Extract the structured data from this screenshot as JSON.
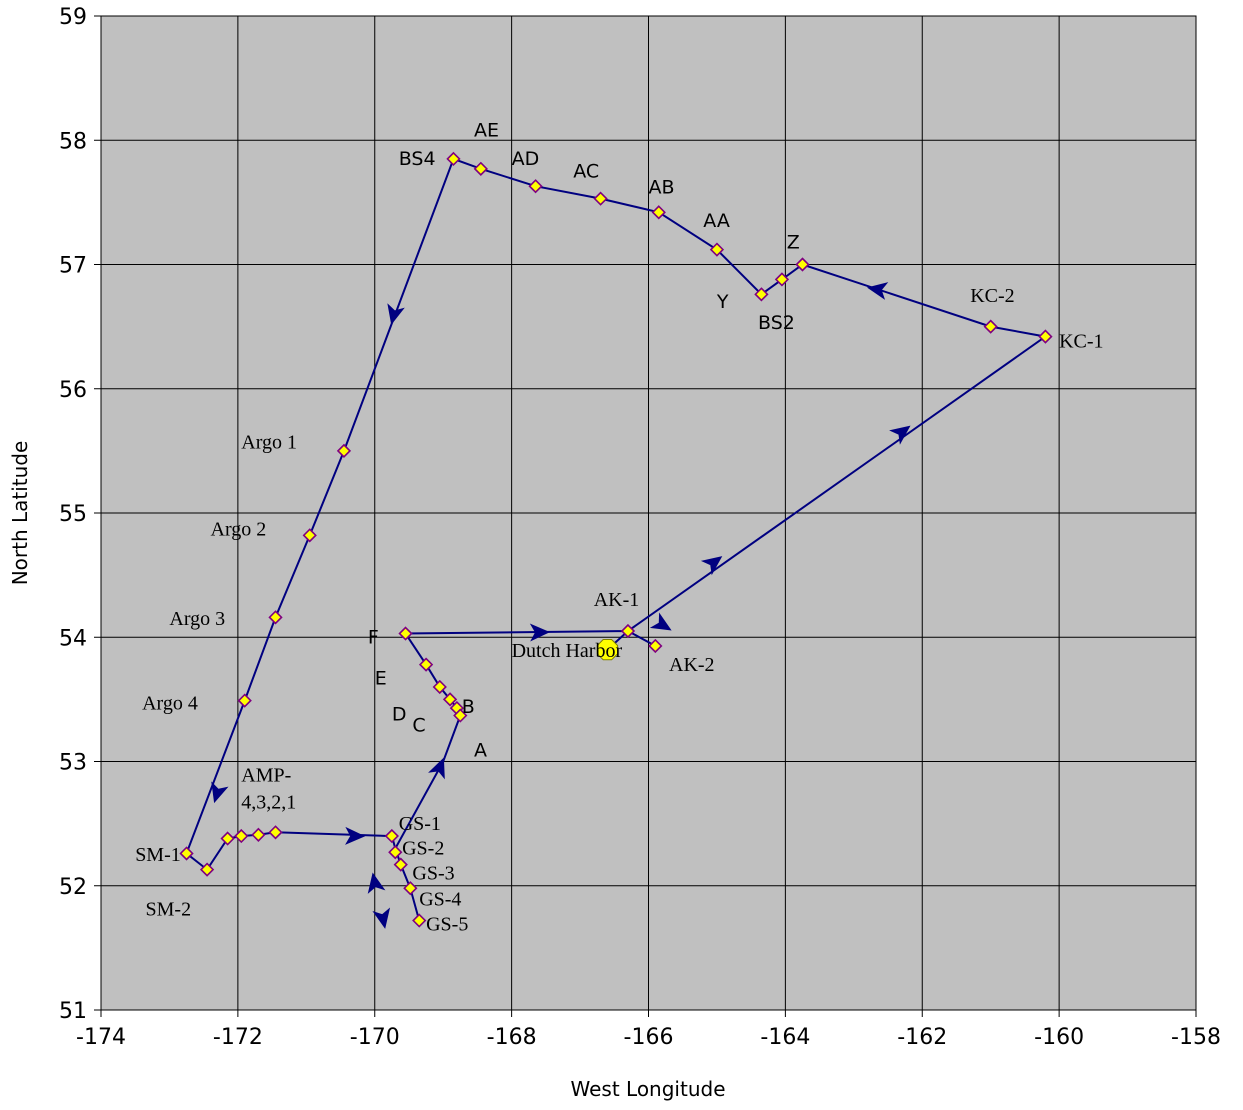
{
  "chart_data": {
    "type": "scatter",
    "xlabel": "West Longitude",
    "ylabel": "North Latitude",
    "xlim": [
      -174,
      -158
    ],
    "ylim": [
      51,
      59
    ],
    "xticks": [
      -174,
      -172,
      -170,
      -168,
      -166,
      -164,
      -162,
      -160,
      -158
    ],
    "yticks": [
      51,
      52,
      53,
      54,
      55,
      56,
      57,
      58,
      59
    ],
    "grid": true,
    "colors": {
      "plot_background": "#c0c0c0",
      "track_line": "#000080",
      "marker_fill": "#ffff00",
      "marker_edge": "#800080",
      "harbor_marker": "#ffff00"
    },
    "track": [
      [
        -166.6,
        53.9
      ],
      [
        -166.3,
        54.05
      ],
      [
        -165.9,
        53.93
      ],
      [
        -166.3,
        54.05
      ],
      [
        -169.55,
        54.03
      ],
      [
        -169.25,
        53.78
      ],
      [
        -169.05,
        53.6
      ],
      [
        -168.9,
        53.5
      ],
      [
        -168.8,
        53.43
      ],
      [
        -168.75,
        53.37
      ],
      [
        -169.0,
        53.0
      ],
      [
        -169.7,
        52.3
      ],
      [
        -169.75,
        52.4
      ],
      [
        -171.45,
        52.43
      ],
      [
        -171.7,
        52.41
      ],
      [
        -171.95,
        52.4
      ],
      [
        -172.15,
        52.38
      ],
      [
        -172.45,
        52.13
      ],
      [
        -172.75,
        52.26
      ],
      [
        -171.9,
        53.49
      ],
      [
        -171.45,
        54.16
      ],
      [
        -170.95,
        54.82
      ],
      [
        -170.45,
        55.5
      ],
      [
        -168.85,
        57.85
      ],
      [
        -168.45,
        57.77
      ],
      [
        -167.65,
        57.63
      ],
      [
        -166.7,
        57.53
      ],
      [
        -165.85,
        57.42
      ],
      [
        -165.0,
        57.12
      ],
      [
        -164.35,
        56.76
      ],
      [
        -164.05,
        56.88
      ],
      [
        -163.75,
        57.0
      ],
      [
        -161.0,
        56.5
      ],
      [
        -160.2,
        56.42
      ],
      [
        -166.3,
        54.05
      ]
    ],
    "gs_branch": [
      [
        -169.7,
        52.3
      ],
      [
        -169.62,
        52.17
      ],
      [
        -169.48,
        51.98
      ],
      [
        -169.35,
        51.72
      ]
    ],
    "stations": [
      [
        -166.3,
        54.05
      ],
      [
        -165.9,
        53.93
      ],
      [
        -169.55,
        54.03
      ],
      [
        -169.25,
        53.78
      ],
      [
        -169.05,
        53.6
      ],
      [
        -168.9,
        53.5
      ],
      [
        -168.8,
        53.43
      ],
      [
        -168.75,
        53.37
      ],
      [
        -169.75,
        52.4
      ],
      [
        -169.7,
        52.27
      ],
      [
        -169.62,
        52.17
      ],
      [
        -169.48,
        51.98
      ],
      [
        -169.35,
        51.72
      ],
      [
        -171.45,
        52.43
      ],
      [
        -171.7,
        52.41
      ],
      [
        -171.95,
        52.4
      ],
      [
        -172.15,
        52.38
      ],
      [
        -172.45,
        52.13
      ],
      [
        -172.75,
        52.26
      ],
      [
        -171.9,
        53.49
      ],
      [
        -171.45,
        54.16
      ],
      [
        -170.95,
        54.82
      ],
      [
        -170.45,
        55.5
      ],
      [
        -168.85,
        57.85
      ],
      [
        -168.45,
        57.77
      ],
      [
        -167.65,
        57.63
      ],
      [
        -166.7,
        57.53
      ],
      [
        -165.85,
        57.42
      ],
      [
        -165.0,
        57.12
      ],
      [
        -164.35,
        56.76
      ],
      [
        -164.05,
        56.88
      ],
      [
        -163.75,
        57.0
      ],
      [
        -161.0,
        56.5
      ],
      [
        -160.2,
        56.42
      ]
    ],
    "harbor": [
      -166.6,
      53.9
    ],
    "arrows": [
      {
        "at": [
          -167.6,
          54.04
        ],
        "dir": [
          1,
          0.02
        ]
      },
      {
        "at": [
          -165.8,
          54.1
        ],
        "dir": [
          1,
          -0.6
        ]
      },
      {
        "at": [
          -165.05,
          54.6
        ],
        "dir": [
          1,
          0.75
        ]
      },
      {
        "at": [
          -162.3,
          55.65
        ],
        "dir": [
          1,
          0.75
        ]
      },
      {
        "at": [
          -162.65,
          56.8
        ],
        "dir": [
          -1,
          0.18
        ]
      },
      {
        "at": [
          -169.72,
          56.6
        ],
        "dir": [
          -0.25,
          -1
        ]
      },
      {
        "at": [
          -172.3,
          52.75
        ],
        "dir": [
          -0.3,
          -1
        ]
      },
      {
        "at": [
          -170.3,
          52.4
        ],
        "dir": [
          1,
          -0.02
        ]
      },
      {
        "at": [
          -169.05,
          52.95
        ],
        "dir": [
          0.4,
          1
        ]
      },
      {
        "at": [
          -170.0,
          52.02
        ],
        "dir": [
          -0.2,
          1
        ]
      },
      {
        "at": [
          -169.88,
          51.74
        ],
        "dir": [
          0.2,
          -1
        ]
      }
    ],
    "labels": [
      {
        "text": "AE",
        "at": [
          -168.55,
          58.03
        ],
        "font": "sans"
      },
      {
        "text": "BS4",
        "at": [
          -169.65,
          57.8
        ],
        "font": "sans"
      },
      {
        "text": "AD",
        "at": [
          -168.0,
          57.8
        ],
        "font": "sans"
      },
      {
        "text": "AC",
        "at": [
          -167.1,
          57.7
        ],
        "font": "sans"
      },
      {
        "text": "AB",
        "at": [
          -166.0,
          57.57
        ],
        "font": "sans"
      },
      {
        "text": "AA",
        "at": [
          -165.2,
          57.3
        ],
        "font": "sans"
      },
      {
        "text": "Z",
        "at": [
          -163.98,
          57.13
        ],
        "font": "sans"
      },
      {
        "text": "KC-2",
        "at": [
          -161.3,
          56.7
        ],
        "font": "serif"
      },
      {
        "text": "Y",
        "at": [
          -165.0,
          56.65
        ],
        "font": "sans"
      },
      {
        "text": "BS2",
        "at": [
          -164.4,
          56.48
        ],
        "font": "sans"
      },
      {
        "text": "KC-1",
        "at": [
          -160.0,
          56.33
        ],
        "font": "serif"
      },
      {
        "text": "Argo 1",
        "at": [
          -171.95,
          55.52
        ],
        "font": "serif"
      },
      {
        "text": "Argo 2",
        "at": [
          -172.4,
          54.82
        ],
        "font": "serif"
      },
      {
        "text": "Argo 3",
        "at": [
          -173.0,
          54.1
        ],
        "font": "serif"
      },
      {
        "text": "Argo 4",
        "at": [
          -173.4,
          53.42
        ],
        "font": "serif"
      },
      {
        "text": "AK-1",
        "at": [
          -166.8,
          54.25
        ],
        "font": "serif"
      },
      {
        "text": "F",
        "at": [
          -170.1,
          53.95
        ],
        "font": "sans"
      },
      {
        "text": "Dutch Harbor",
        "at": [
          -168.0,
          53.84
        ],
        "font": "serif"
      },
      {
        "text": "AK-2",
        "at": [
          -165.7,
          53.73
        ],
        "font": "serif"
      },
      {
        "text": "E",
        "at": [
          -170.0,
          53.62
        ],
        "font": "sans"
      },
      {
        "text": "D",
        "at": [
          -169.75,
          53.33
        ],
        "font": "sans"
      },
      {
        "text": "B",
        "at": [
          -168.73,
          53.39
        ],
        "font": "sans"
      },
      {
        "text": "C",
        "at": [
          -169.45,
          53.24
        ],
        "font": "sans"
      },
      {
        "text": "A",
        "at": [
          -168.55,
          53.04
        ],
        "font": "sans"
      },
      {
        "text": "AMP-",
        "at": [
          -171.95,
          52.84
        ],
        "font": "serif"
      },
      {
        "text": "4,3,2,1",
        "at": [
          -171.95,
          52.62
        ],
        "font": "serif"
      },
      {
        "text": "GS-1",
        "at": [
          -169.65,
          52.45
        ],
        "font": "serif"
      },
      {
        "text": "GS-2",
        "at": [
          -169.6,
          52.25
        ],
        "font": "serif"
      },
      {
        "text": "GS-3",
        "at": [
          -169.45,
          52.05
        ],
        "font": "serif"
      },
      {
        "text": "GS-4",
        "at": [
          -169.35,
          51.84
        ],
        "font": "serif"
      },
      {
        "text": "GS-5",
        "at": [
          -169.25,
          51.64
        ],
        "font": "serif"
      },
      {
        "text": "SM-1",
        "at": [
          -173.5,
          52.2
        ],
        "font": "serif"
      },
      {
        "text": "SM-2",
        "at": [
          -173.35,
          51.76
        ],
        "font": "serif"
      }
    ]
  }
}
